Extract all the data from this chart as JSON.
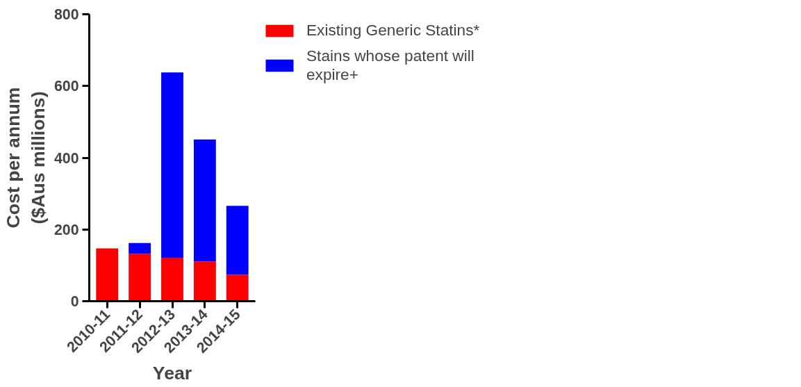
{
  "chart_data": {
    "type": "bar",
    "stacked": true,
    "xlabel": "Year",
    "ylabel": "Cost per annum\n($Aus millions)",
    "categories": [
      "2010-11",
      "2011-12",
      "2012-13",
      "2013-14",
      "2014-15"
    ],
    "series": [
      {
        "name": "Existing Generic Statins*",
        "color": "#ff0000",
        "values": [
          147,
          132,
          121,
          111,
          74
        ]
      },
      {
        "name": "Stains whose patent will expire+",
        "color": "#0000ff",
        "values": [
          0,
          30,
          517,
          340,
          192
        ]
      }
    ],
    "ylim": [
      0,
      800
    ],
    "yticks": [
      0,
      200,
      400,
      600,
      800
    ],
    "grid": false,
    "legend": "top right"
  }
}
